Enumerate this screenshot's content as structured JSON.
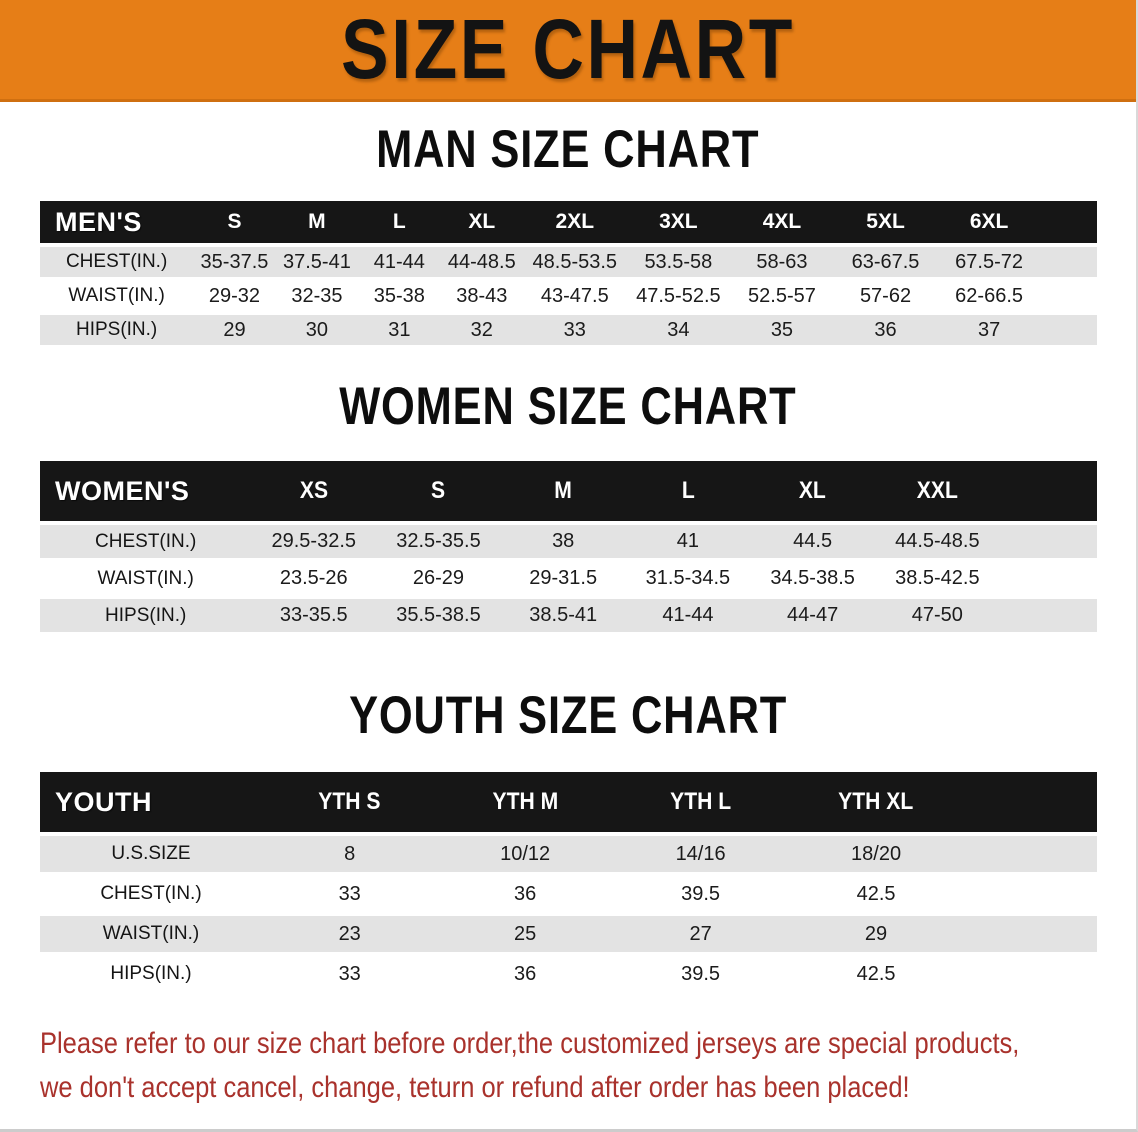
{
  "banner": {
    "title": "SIZE CHART"
  },
  "colors": {
    "banner_bg": "#e67e17",
    "table_header_bar": "#161616",
    "row_stripe_gray": "#e3e3e3",
    "note_red": "#a9322c"
  },
  "sections": [
    {
      "id": "men",
      "heading": "MAN SIZE CHART",
      "table": {
        "header": {
          "label": "MEN'S",
          "columns": [
            "S",
            "M",
            "L",
            "XL",
            "2XL",
            "3XL",
            "4XL",
            "5XL",
            "6XL"
          ]
        },
        "rows": [
          {
            "label": "CHEST(IN.)",
            "values": [
              "35-37.5",
              "37.5-41",
              "41-44",
              "44-48.5",
              "48.5-53.5",
              "53.5-58",
              "58-63",
              "63-67.5",
              "67.5-72"
            ]
          },
          {
            "label": "WAIST(IN.)",
            "values": [
              "29-32",
              "32-35",
              "35-38",
              "38-43",
              "43-47.5",
              "47.5-52.5",
              "52.5-57",
              "57-62",
              "62-66.5"
            ]
          },
          {
            "label": "HIPS(IN.)",
            "values": [
              "29",
              "30",
              "31",
              "32",
              "33",
              "34",
              "35",
              "36",
              "37"
            ]
          }
        ]
      }
    },
    {
      "id": "women",
      "heading": "WOMEN SIZE CHART",
      "table": {
        "header": {
          "label": "WOMEN'S",
          "columns": [
            "XS",
            "S",
            "M",
            "L",
            "XL",
            "XXL"
          ]
        },
        "rows": [
          {
            "label": "CHEST(IN.)",
            "values": [
              "29.5-32.5",
              "32.5-35.5",
              "38",
              "41",
              "44.5",
              "44.5-48.5"
            ]
          },
          {
            "label": "WAIST(IN.)",
            "values": [
              "23.5-26",
              "26-29",
              "29-31.5",
              "31.5-34.5",
              "34.5-38.5",
              "38.5-42.5"
            ]
          },
          {
            "label": "HIPS(IN.)",
            "values": [
              "33-35.5",
              "35.5-38.5",
              "38.5-41",
              "41-44",
              "44-47",
              "47-50"
            ]
          }
        ]
      }
    },
    {
      "id": "youth",
      "heading": "YOUTH SIZE CHART",
      "table": {
        "header": {
          "label": "YOUTH",
          "columns": [
            "YTH S",
            "YTH M",
            "YTH L",
            "YTH XL"
          ]
        },
        "rows": [
          {
            "label": "U.S.SIZE",
            "values": [
              "8",
              "10/12",
              "14/16",
              "18/20"
            ]
          },
          {
            "label": "CHEST(IN.)",
            "values": [
              "33",
              "36",
              "39.5",
              "42.5"
            ]
          },
          {
            "label": "WAIST(IN.)",
            "values": [
              "23",
              "25",
              "27",
              "29"
            ]
          },
          {
            "label": "HIPS(IN.)",
            "values": [
              "33",
              "36",
              "39.5",
              "42.5"
            ]
          }
        ]
      }
    }
  ],
  "footer": {
    "line1": "Please refer to our size chart before order,the customized jerseys are special products,",
    "line2": "we don't accept cancel, change, teturn or refund after order has been placed!"
  }
}
